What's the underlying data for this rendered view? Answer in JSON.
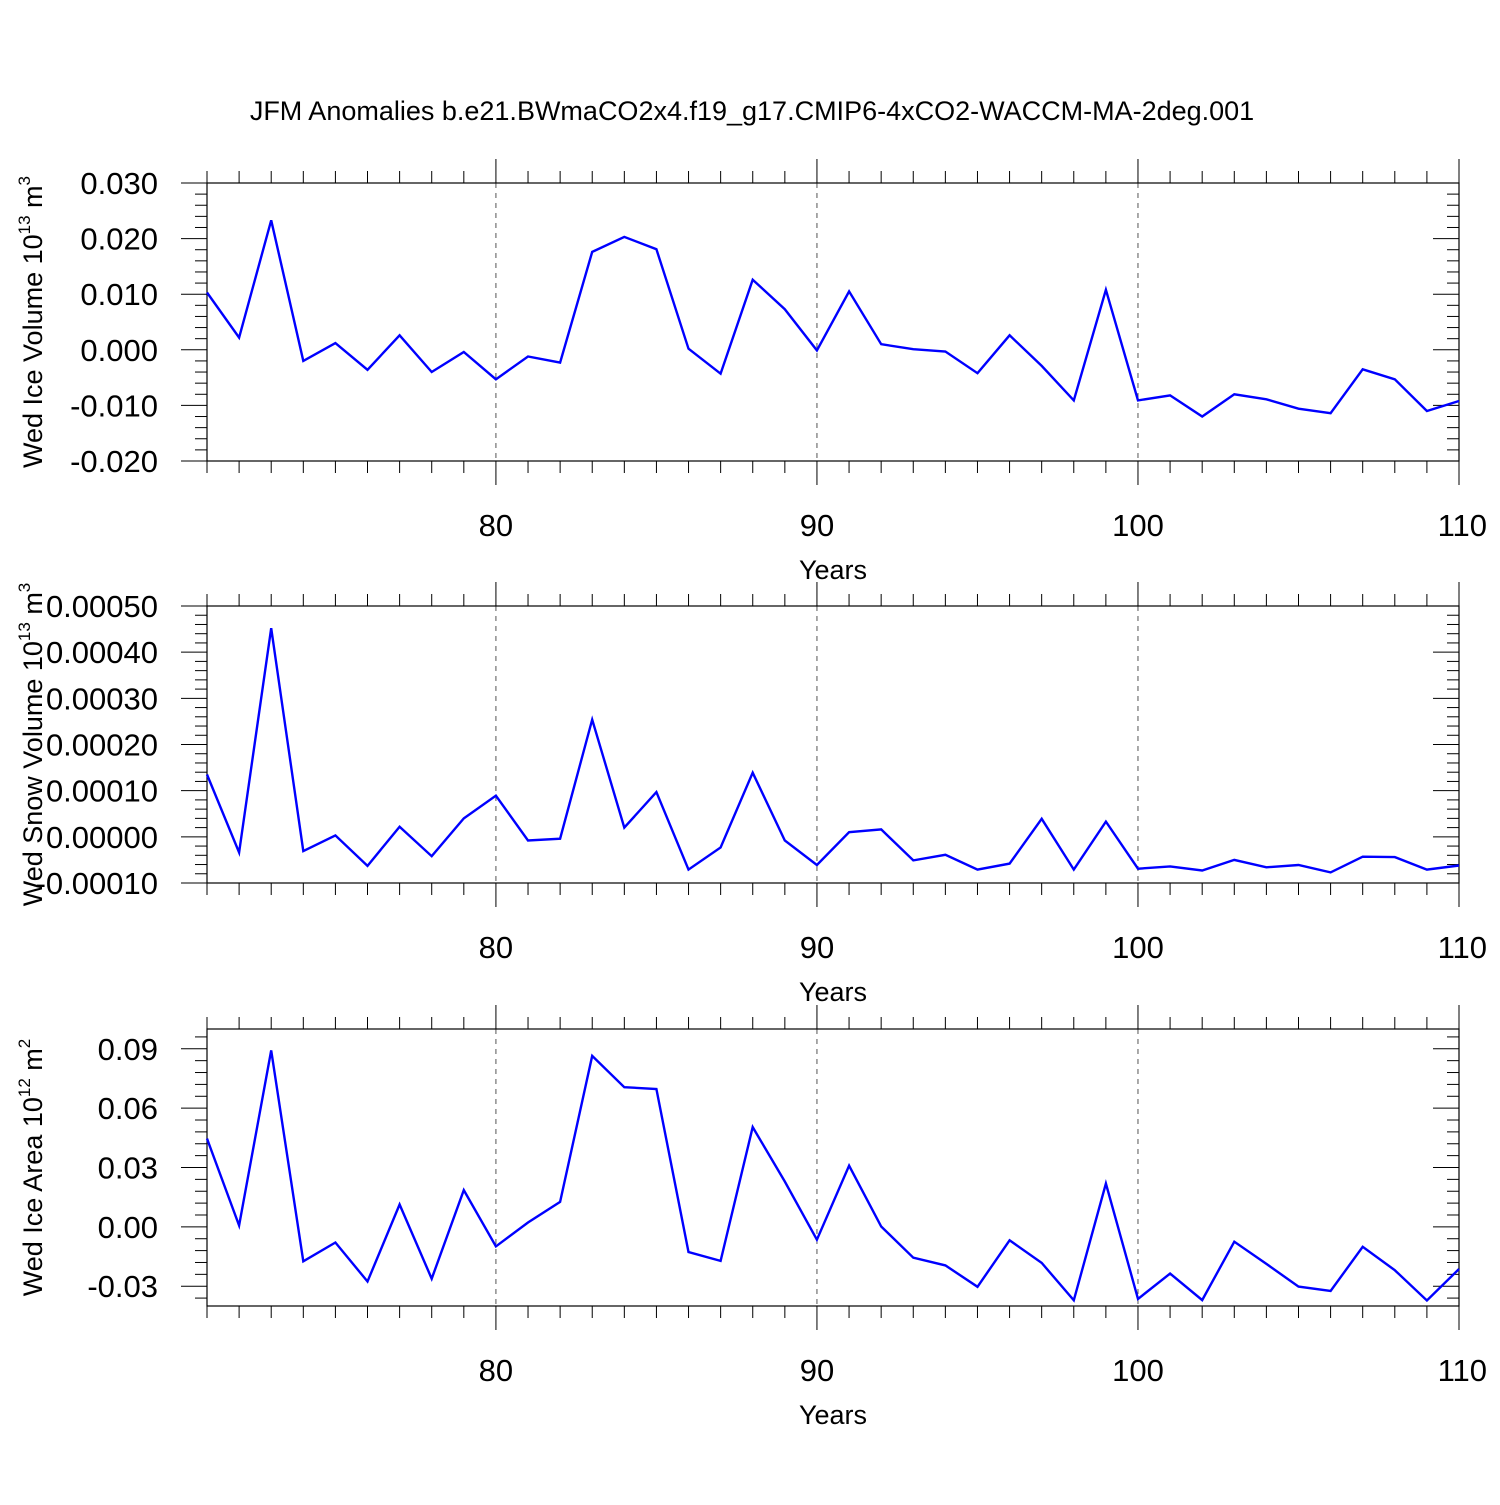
{
  "title": "JFM Anomalies b.e21.BWmaCO2x4.f19_g17.CMIP6-4xCO2-WACCM-MA-2deg.001",
  "line_color": "#0000ff",
  "chart_data": [
    {
      "type": "line",
      "title": "JFM Anomalies b.e21.BWmaCO2x4.f19_g17.CMIP6-4xCO2-WACCM-MA-2deg.001",
      "xlabel": "Years",
      "ylabel": "Wed Ice Volume 10",
      "ylabel_exp": "13",
      "ylabel_unit": " m",
      "ylabel_unit_exp": "3",
      "xlim": [
        71,
        110
      ],
      "ylim": [
        -0.02,
        0.03
      ],
      "yticks": [
        -0.02,
        -0.01,
        0.0,
        0.01,
        0.02,
        0.03
      ],
      "ytick_labels": [
        "-0.020",
        "-0.010",
        "0.000",
        "0.010",
        "0.020",
        "0.030"
      ],
      "xticks": [
        80,
        90,
        100,
        110
      ],
      "xtick_labels": [
        "80",
        "90",
        "100",
        "110"
      ],
      "x": [
        71,
        72,
        73,
        74,
        75,
        76,
        77,
        78,
        79,
        80,
        81,
        82,
        83,
        84,
        85,
        86,
        87,
        88,
        89,
        90,
        91,
        92,
        93,
        94,
        95,
        96,
        97,
        98,
        99,
        100,
        101,
        102,
        103,
        104,
        105,
        106,
        107,
        108,
        109,
        110
      ],
      "values": [
        0.0103,
        0.0022,
        0.0233,
        -0.002,
        0.0012,
        -0.0036,
        0.0026,
        -0.004,
        -0.0004,
        -0.0053,
        -0.0012,
        -0.0023,
        0.0176,
        0.0203,
        0.0181,
        0.0002,
        -0.0043,
        0.0126,
        0.0073,
        -0.0001,
        0.0105,
        0.001,
        0.0001,
        -0.0003,
        -0.0042,
        0.0026,
        -0.0029,
        -0.0091,
        0.0108,
        -0.0091,
        -0.0082,
        -0.012,
        -0.008,
        -0.0089,
        -0.0106,
        -0.0114,
        -0.0035,
        -0.0053,
        -0.011,
        -0.0092
      ]
    },
    {
      "type": "line",
      "xlabel": "Years",
      "ylabel": "Wed Snow Volume 10",
      "ylabel_exp": "13",
      "ylabel_unit": " m",
      "ylabel_unit_exp": "3",
      "xlim": [
        71,
        110
      ],
      "ylim": [
        -0.0001,
        0.0005
      ],
      "yticks": [
        -0.0001,
        0.0,
        0.0001,
        0.0002,
        0.0003,
        0.0004,
        0.0005
      ],
      "ytick_labels": [
        "-0.00010",
        "0.00000",
        "0.00010",
        "0.00020",
        "0.00030",
        "0.00040",
        "0.00050"
      ],
      "xticks": [
        80,
        90,
        100,
        110
      ],
      "xtick_labels": [
        "80",
        "90",
        "100",
        "110"
      ],
      "x": [
        71,
        72,
        73,
        74,
        75,
        76,
        77,
        78,
        79,
        80,
        81,
        82,
        83,
        84,
        85,
        86,
        87,
        88,
        89,
        90,
        91,
        92,
        93,
        94,
        95,
        96,
        97,
        98,
        99,
        100,
        101,
        102,
        103,
        104,
        105,
        106,
        107,
        108,
        109,
        110
      ],
      "values": [
        0.000135,
        -3.4e-05,
        0.000452,
        -3.1e-05,
        3e-06,
        -6.3e-05,
        2.2e-05,
        -4.2e-05,
        4e-05,
        8.9e-05,
        -8e-06,
        -4e-06,
        0.000254,
        2e-05,
        9.7e-05,
        -7.1e-05,
        -2.3e-05,
        0.000139,
        -8e-06,
        -6.1e-05,
        1e-05,
        1.6e-05,
        -5.1e-05,
        -3.9e-05,
        -7.1e-05,
        -5.8e-05,
        3.9e-05,
        -7.1e-05,
        3.3e-05,
        -6.9e-05,
        -6.4e-05,
        -7.3e-05,
        -5e-05,
        -6.6e-05,
        -6.1e-05,
        -7.7e-05,
        -4.3e-05,
        -4.4e-05,
        -7.1e-05,
        -6.2e-05
      ]
    },
    {
      "type": "line",
      "xlabel": "Years",
      "ylabel": "Wed Ice Area 10",
      "ylabel_exp": "12",
      "ylabel_unit": " m",
      "ylabel_unit_exp": "2",
      "xlim": [
        71,
        110
      ],
      "ylim": [
        -0.04,
        0.1
      ],
      "yticks": [
        -0.03,
        0.0,
        0.03,
        0.06,
        0.09
      ],
      "ytick_labels": [
        "-0.03",
        "0.00",
        "0.03",
        "0.06",
        "0.09"
      ],
      "xticks": [
        80,
        90,
        100,
        110
      ],
      "xtick_labels": [
        "80",
        "90",
        "100",
        "110"
      ],
      "x": [
        71,
        72,
        73,
        74,
        75,
        76,
        77,
        78,
        79,
        80,
        81,
        82,
        83,
        84,
        85,
        86,
        87,
        88,
        89,
        90,
        91,
        92,
        93,
        94,
        95,
        96,
        97,
        98,
        99,
        100,
        101,
        102,
        103,
        104,
        105,
        106,
        107,
        108,
        109,
        110
      ],
      "values": [
        0.0446,
        0.0007,
        0.0892,
        -0.0174,
        -0.0079,
        -0.0276,
        0.0113,
        -0.0262,
        0.0186,
        -0.0099,
        0.0022,
        0.0126,
        0.0864,
        0.0706,
        0.0697,
        -0.0127,
        -0.0172,
        0.0504,
        0.0229,
        -0.0065,
        0.0309,
        0.0002,
        -0.0156,
        -0.0195,
        -0.0303,
        -0.0068,
        -0.0182,
        -0.0371,
        0.0219,
        -0.0364,
        -0.0236,
        -0.037,
        -0.0075,
        -0.0187,
        -0.0302,
        -0.0324,
        -0.0101,
        -0.0219,
        -0.0372,
        -0.0213
      ]
    }
  ]
}
